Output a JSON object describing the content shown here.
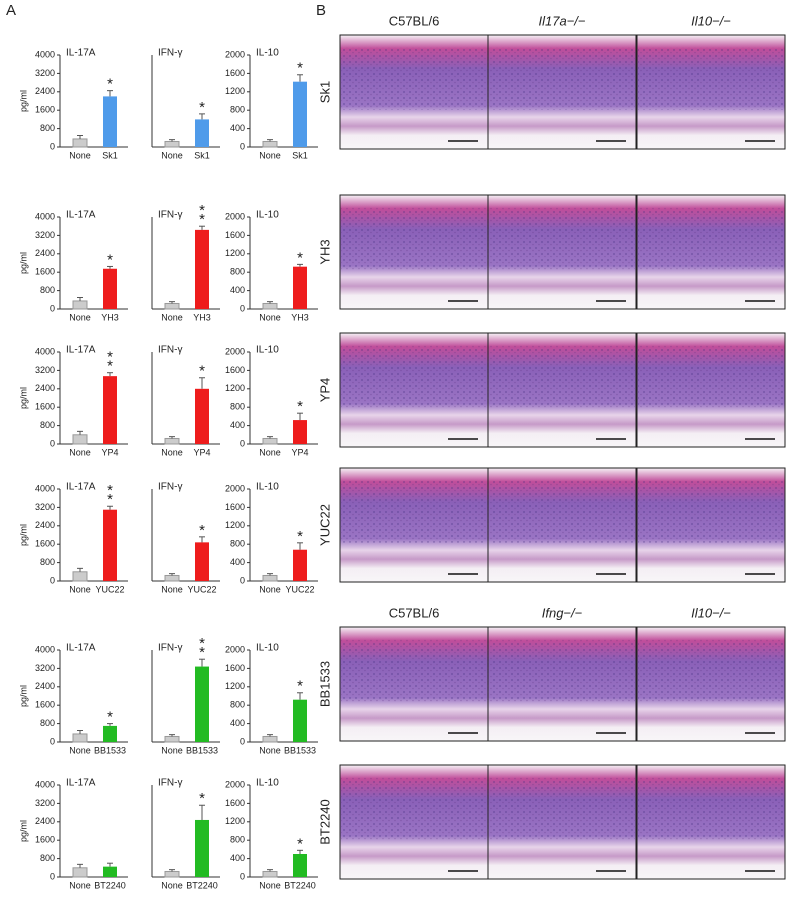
{
  "panel_a": {
    "label": "A"
  },
  "chart_data": [
    {
      "type": "bar",
      "title": "IL-17A",
      "ylabel": "pg/ml",
      "categories": [
        "None",
        "Sk1"
      ],
      "values": [
        350,
        2200
      ],
      "errors": [
        150,
        250
      ],
      "colors": [
        "#cccccc",
        "#4f9bea"
      ],
      "ylim": [
        0,
        4000
      ],
      "yticks": [
        0,
        800,
        1600,
        2400,
        3200,
        4000
      ],
      "annotation": [
        "*"
      ]
    },
    {
      "type": "bar",
      "title": "IFN-γ",
      "categories": [
        "None",
        "Sk1"
      ],
      "values": [
        30,
        150
      ],
      "errors": [
        10,
        30
      ],
      "colors": [
        "#cccccc",
        "#4f9bea"
      ],
      "ylim": [
        0,
        500
      ],
      "annotation": [
        "*"
      ]
    },
    {
      "type": "bar",
      "title": "IL-10",
      "categories": [
        "None",
        "Sk1"
      ],
      "values": [
        120,
        1420
      ],
      "errors": [
        40,
        150
      ],
      "colors": [
        "#cccccc",
        "#4f9bea"
      ],
      "ylim": [
        0,
        2000
      ],
      "yticks": [
        0,
        400,
        800,
        1200,
        1600,
        2000
      ],
      "annotation": [
        "*"
      ]
    },
    {
      "type": "bar",
      "title": "IL-17A",
      "ylabel": "pg/ml",
      "categories": [
        "None",
        "YH3"
      ],
      "values": [
        350,
        1750
      ],
      "errors": [
        150,
        100
      ],
      "colors": [
        "#cccccc",
        "#ee1c1c"
      ],
      "ylim": [
        0,
        4000
      ],
      "yticks": [
        0,
        800,
        1600,
        2400,
        3200,
        4000
      ],
      "annotation": [
        "*"
      ]
    },
    {
      "type": "bar",
      "title": "IFN-γ",
      "categories": [
        "None",
        "YH3"
      ],
      "values": [
        30,
        430
      ],
      "errors": [
        10,
        20
      ],
      "colors": [
        "#cccccc",
        "#ee1c1c"
      ],
      "ylim": [
        0,
        500
      ],
      "annotation": [
        "*",
        "*"
      ]
    },
    {
      "type": "bar",
      "title": "IL-10",
      "categories": [
        "None",
        "YH3"
      ],
      "values": [
        120,
        920
      ],
      "errors": [
        40,
        50
      ],
      "colors": [
        "#cccccc",
        "#ee1c1c"
      ],
      "ylim": [
        0,
        2000
      ],
      "yticks": [
        0,
        400,
        800,
        1200,
        1600,
        2000
      ],
      "annotation": [
        "*"
      ]
    },
    {
      "type": "bar",
      "title": "IL-17A",
      "ylabel": "pg/ml",
      "categories": [
        "None",
        "YP4"
      ],
      "values": [
        400,
        2950
      ],
      "errors": [
        150,
        150
      ],
      "colors": [
        "#cccccc",
        "#ee1c1c"
      ],
      "ylim": [
        0,
        4000
      ],
      "yticks": [
        0,
        800,
        1600,
        2400,
        3200,
        4000
      ],
      "annotation": [
        "*",
        "*"
      ]
    },
    {
      "type": "bar",
      "title": "IFN-γ",
      "categories": [
        "None",
        "YP4"
      ],
      "values": [
        30,
        300
      ],
      "errors": [
        10,
        60
      ],
      "colors": [
        "#cccccc",
        "#ee1c1c"
      ],
      "ylim": [
        0,
        500
      ],
      "annotation": [
        "*"
      ]
    },
    {
      "type": "bar",
      "title": "IL-10",
      "categories": [
        "None",
        "YP4"
      ],
      "values": [
        120,
        520
      ],
      "errors": [
        40,
        150
      ],
      "colors": [
        "#cccccc",
        "#ee1c1c"
      ],
      "ylim": [
        0,
        2000
      ],
      "yticks": [
        0,
        400,
        800,
        1200,
        1600,
        2000
      ],
      "annotation": [
        "*"
      ]
    },
    {
      "type": "bar",
      "title": "IL-17A",
      "ylabel": "pg/ml",
      "categories": [
        "None",
        "YUC22"
      ],
      "values": [
        400,
        3100
      ],
      "errors": [
        150,
        150
      ],
      "colors": [
        "#cccccc",
        "#ee1c1c"
      ],
      "ylim": [
        0,
        4000
      ],
      "yticks": [
        0,
        800,
        1600,
        2400,
        3200,
        4000
      ],
      "annotation": [
        "*",
        "*"
      ]
    },
    {
      "type": "bar",
      "title": "IFN-γ",
      "categories": [
        "None",
        "YUC22"
      ],
      "values": [
        30,
        210
      ],
      "errors": [
        10,
        30
      ],
      "colors": [
        "#cccccc",
        "#ee1c1c"
      ],
      "ylim": [
        0,
        500
      ],
      "annotation": [
        "*"
      ]
    },
    {
      "type": "bar",
      "title": "IL-10",
      "categories": [
        "None",
        "YUC22"
      ],
      "values": [
        120,
        680
      ],
      "errors": [
        40,
        150
      ],
      "colors": [
        "#cccccc",
        "#ee1c1c"
      ],
      "ylim": [
        0,
        2000
      ],
      "yticks": [
        0,
        400,
        800,
        1200,
        1600,
        2000
      ],
      "annotation": [
        "*"
      ]
    },
    {
      "type": "bar",
      "title": "IL-17A",
      "ylabel": "pg/ml",
      "categories": [
        "None",
        "BB1533"
      ],
      "values": [
        350,
        700
      ],
      "errors": [
        150,
        100
      ],
      "colors": [
        "#cccccc",
        "#22bb22"
      ],
      "ylim": [
        0,
        4000
      ],
      "yticks": [
        0,
        800,
        1600,
        2400,
        3200,
        4000
      ],
      "annotation": [
        "*"
      ]
    },
    {
      "type": "bar",
      "title": "IFN-γ",
      "categories": [
        "None",
        "BB1533"
      ],
      "values": [
        30,
        410
      ],
      "errors": [
        10,
        40
      ],
      "colors": [
        "#cccccc",
        "#22bb22"
      ],
      "ylim": [
        0,
        500
      ],
      "annotation": [
        "*",
        "*"
      ]
    },
    {
      "type": "bar",
      "title": "IL-10",
      "categories": [
        "None",
        "BB1533"
      ],
      "values": [
        120,
        920
      ],
      "errors": [
        40,
        150
      ],
      "colors": [
        "#cccccc",
        "#22bb22"
      ],
      "ylim": [
        0,
        2000
      ],
      "yticks": [
        0,
        400,
        800,
        1200,
        1600,
        2000
      ],
      "annotation": [
        "*"
      ]
    },
    {
      "type": "bar",
      "title": "IL-17A",
      "ylabel": "pg/ml",
      "categories": [
        "None",
        "BT2240"
      ],
      "values": [
        400,
        450
      ],
      "errors": [
        150,
        150
      ],
      "colors": [
        "#cccccc",
        "#22bb22"
      ],
      "ylim": [
        0,
        4000
      ],
      "yticks": [
        0,
        800,
        1600,
        2400,
        3200,
        4000
      ]
    },
    {
      "type": "bar",
      "title": "IFN-γ",
      "categories": [
        "None",
        "BT2240"
      ],
      "values": [
        30,
        310
      ],
      "errors": [
        10,
        80
      ],
      "colors": [
        "#cccccc",
        "#22bb22"
      ],
      "ylim": [
        0,
        500
      ],
      "annotation": [
        "*"
      ]
    },
    {
      "type": "bar",
      "title": "IL-10",
      "categories": [
        "None",
        "BT2240"
      ],
      "values": [
        120,
        500
      ],
      "errors": [
        40,
        80
      ],
      "colors": [
        "#cccccc",
        "#22bb22"
      ],
      "ylim": [
        0,
        2000
      ],
      "yticks": [
        0,
        400,
        800,
        1200,
        1600,
        2000
      ],
      "annotation": [
        "*"
      ]
    }
  ],
  "panel_b": {
    "label": "B",
    "headers_top": [
      "C57BL/6",
      "Il17a−/−",
      "Il10−/−"
    ],
    "headers_bottom": [
      "C57BL/6",
      "Ifng−/−",
      "Il10−/−"
    ],
    "rows": [
      "Sk1",
      "YH3",
      "YP4",
      "YUC22",
      "BB1533",
      "BT2240"
    ]
  }
}
